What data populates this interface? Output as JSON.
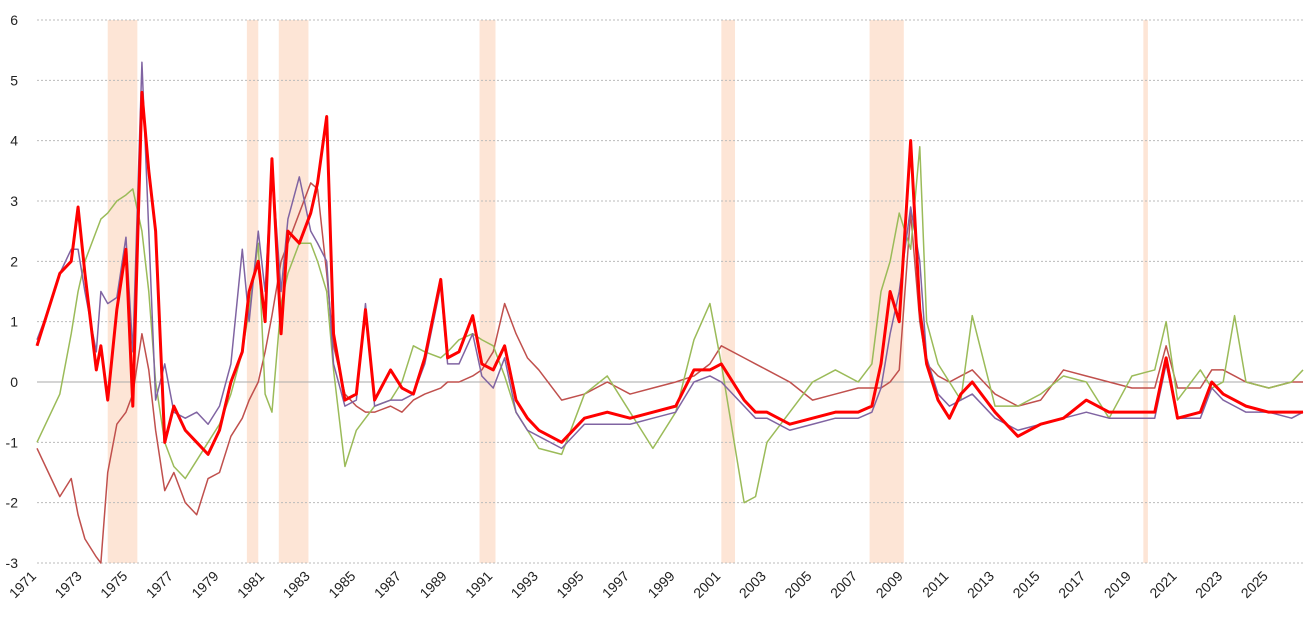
{
  "chart_data": {
    "type": "line",
    "x": [
      1971,
      1971.5,
      1972,
      1972.5,
      1972.8,
      1973.1,
      1973.6,
      1973.8,
      1974.1,
      1974.5,
      1974.9,
      1975.2,
      1975.6,
      1975.9,
      1976.2,
      1976.6,
      1977,
      1977.5,
      1978,
      1978.5,
      1979,
      1979.5,
      1980,
      1980.3,
      1980.7,
      1981,
      1981.3,
      1981.7,
      1982,
      1982.5,
      1983,
      1983.3,
      1983.7,
      1984,
      1984.5,
      1985,
      1985.4,
      1985.8,
      1986.5,
      1987,
      1987.5,
      1988,
      1988.7,
      1989,
      1989.5,
      1990.1,
      1990.5,
      1991,
      1991.5,
      1992,
      1992.5,
      1993,
      1994,
      1995,
      1996,
      1997,
      1998,
      1999,
      1999.8,
      2000.5,
      2001,
      2002,
      2002.5,
      2003,
      2004,
      2005,
      2006,
      2007,
      2007.6,
      2008,
      2008.4,
      2008.8,
      2009.3,
      2009.7,
      2010,
      2010.5,
      2011,
      2011.5,
      2012,
      2013,
      2014,
      2015,
      2016,
      2017,
      2018,
      2019,
      2020,
      2020.5,
      2021,
      2022,
      2022.5,
      2023,
      2023.5,
      2024,
      2025,
      2026,
      2026.5
    ],
    "series": [
      {
        "color": "#c0504d",
        "width": 1.5,
        "values": [
          -1.1,
          -1.5,
          -1.9,
          -1.6,
          -2.2,
          -2.6,
          -2.9,
          -3.0,
          -1.5,
          -0.7,
          -0.5,
          -0.2,
          0.8,
          0.2,
          -0.8,
          -1.8,
          -1.5,
          -2.0,
          -2.2,
          -1.6,
          -1.5,
          -0.9,
          -0.6,
          -0.3,
          0.0,
          0.5,
          1.1,
          2.0,
          2.3,
          2.8,
          3.3,
          3.2,
          1.8,
          0.6,
          -0.2,
          -0.4,
          -0.5,
          -0.5,
          -0.4,
          -0.5,
          -0.3,
          -0.2,
          -0.1,
          0.0,
          0.0,
          0.1,
          0.2,
          0.5,
          1.3,
          0.8,
          0.4,
          0.2,
          -0.3,
          -0.2,
          0.0,
          -0.2,
          -0.1,
          0.0,
          0.1,
          0.3,
          0.6,
          0.4,
          0.3,
          0.2,
          0.0,
          -0.3,
          -0.2,
          -0.1,
          -0.1,
          -0.1,
          0.0,
          0.2,
          2.8,
          1.0,
          0.3,
          0.1,
          0.0,
          0.1,
          0.2,
          -0.2,
          -0.4,
          -0.3,
          0.2,
          0.1,
          0.0,
          -0.1,
          -0.1,
          0.6,
          -0.1,
          -0.1,
          0.2,
          0.2,
          0.1,
          0.0,
          -0.1,
          0.0,
          0.0
        ]
      },
      {
        "color": "#9bbb59",
        "width": 1.5,
        "values": [
          -1.0,
          -0.6,
          -0.2,
          0.8,
          1.5,
          2.0,
          2.5,
          2.7,
          2.8,
          3.0,
          3.1,
          3.2,
          2.5,
          1.5,
          0.0,
          -1.0,
          -1.4,
          -1.6,
          -1.3,
          -1.0,
          -0.7,
          -0.2,
          0.5,
          1.2,
          2.3,
          -0.2,
          -0.5,
          1.3,
          1.8,
          2.3,
          2.3,
          2.0,
          1.5,
          0.2,
          -1.4,
          -0.8,
          -0.6,
          -0.4,
          -0.3,
          0.0,
          0.6,
          0.5,
          0.4,
          0.5,
          0.7,
          0.8,
          0.7,
          0.6,
          0.1,
          -0.5,
          -0.8,
          -1.1,
          -1.2,
          -0.2,
          0.1,
          -0.5,
          -1.1,
          -0.5,
          0.7,
          1.3,
          0.3,
          -2.0,
          -1.9,
          -1.0,
          -0.5,
          0.0,
          0.2,
          0.0,
          0.3,
          1.5,
          2.0,
          2.8,
          2.2,
          3.9,
          1.0,
          0.3,
          0.0,
          -0.3,
          1.1,
          -0.4,
          -0.4,
          -0.2,
          0.1,
          0.0,
          -0.6,
          0.1,
          0.2,
          1.0,
          -0.3,
          0.2,
          -0.1,
          0.0,
          1.1,
          0.0,
          -0.1,
          0.0,
          0.2
        ]
      },
      {
        "color": "#8064a2",
        "width": 1.5,
        "values": [
          0.7,
          1.2,
          1.8,
          2.2,
          2.2,
          1.5,
          0.5,
          1.5,
          1.3,
          1.4,
          2.4,
          0.5,
          5.3,
          2.5,
          -0.3,
          0.3,
          -0.5,
          -0.6,
          -0.5,
          -0.7,
          -0.4,
          0.3,
          2.2,
          1.0,
          2.5,
          1.5,
          3.6,
          1.5,
          2.7,
          3.4,
          2.5,
          2.3,
          2.0,
          0.3,
          -0.4,
          -0.3,
          1.3,
          -0.4,
          -0.3,
          -0.3,
          -0.2,
          0.3,
          1.6,
          0.3,
          0.3,
          0.8,
          0.1,
          -0.1,
          0.4,
          -0.5,
          -0.8,
          -0.9,
          -1.1,
          -0.7,
          -0.7,
          -0.7,
          -0.6,
          -0.5,
          0.0,
          0.1,
          0.0,
          -0.4,
          -0.6,
          -0.6,
          -0.8,
          -0.7,
          -0.6,
          -0.6,
          -0.5,
          -0.1,
          0.8,
          1.5,
          2.9,
          2.0,
          0.4,
          -0.2,
          -0.4,
          -0.3,
          -0.2,
          -0.6,
          -0.8,
          -0.7,
          -0.6,
          -0.5,
          -0.6,
          -0.6,
          -0.6,
          0.3,
          -0.6,
          -0.6,
          -0.1,
          -0.3,
          -0.4,
          -0.5,
          -0.5,
          -0.6,
          -0.5
        ]
      },
      {
        "color": "#ff0000",
        "width": 3,
        "values": [
          0.6,
          1.2,
          1.8,
          2.0,
          2.9,
          1.8,
          0.2,
          0.6,
          -0.3,
          1.2,
          2.2,
          -0.4,
          4.8,
          3.5,
          2.5,
          -1.0,
          -0.4,
          -0.8,
          -1.0,
          -1.2,
          -0.8,
          0.0,
          0.5,
          1.5,
          2.0,
          1.0,
          3.7,
          0.8,
          2.5,
          2.3,
          2.8,
          3.3,
          4.4,
          0.8,
          -0.3,
          -0.2,
          1.2,
          -0.3,
          0.2,
          -0.1,
          -0.2,
          0.4,
          1.7,
          0.4,
          0.5,
          1.1,
          0.3,
          0.2,
          0.6,
          -0.3,
          -0.6,
          -0.8,
          -1.0,
          -0.6,
          -0.5,
          -0.6,
          -0.5,
          -0.4,
          0.2,
          0.2,
          0.3,
          -0.3,
          -0.5,
          -0.5,
          -0.7,
          -0.6,
          -0.5,
          -0.5,
          -0.4,
          0.3,
          1.5,
          1.0,
          4.0,
          1.2,
          0.3,
          -0.3,
          -0.6,
          -0.2,
          0.0,
          -0.5,
          -0.9,
          -0.7,
          -0.6,
          -0.3,
          -0.5,
          -0.5,
          -0.5,
          0.4,
          -0.6,
          -0.5,
          0.0,
          -0.2,
          -0.3,
          -0.4,
          -0.5,
          -0.5,
          -0.5
        ]
      }
    ],
    "recession_periods": [
      [
        1974.1,
        1975.4
      ],
      [
        1980.2,
        1980.7
      ],
      [
        1981.6,
        1982.9
      ],
      [
        1990.4,
        1991.1
      ],
      [
        2001.0,
        2001.6
      ],
      [
        2007.5,
        2009.0
      ],
      [
        2019.5,
        2019.7
      ]
    ],
    "recession_color": "#fde5d6",
    "xlim": [
      1971,
      2026.5
    ],
    "xticks": [
      1971,
      1973,
      1975,
      1977,
      1979,
      1981,
      1983,
      1985,
      1987,
      1989,
      1991,
      1993,
      1995,
      1997,
      1999,
      2001,
      2003,
      2005,
      2007,
      2009,
      2011,
      2013,
      2015,
      2017,
      2019,
      2021,
      2023,
      2025
    ],
    "ylim": [
      -3,
      6
    ],
    "yticks": [
      -3,
      -2,
      -1,
      0,
      1,
      2,
      3,
      4,
      5,
      6
    ],
    "grid": true
  }
}
